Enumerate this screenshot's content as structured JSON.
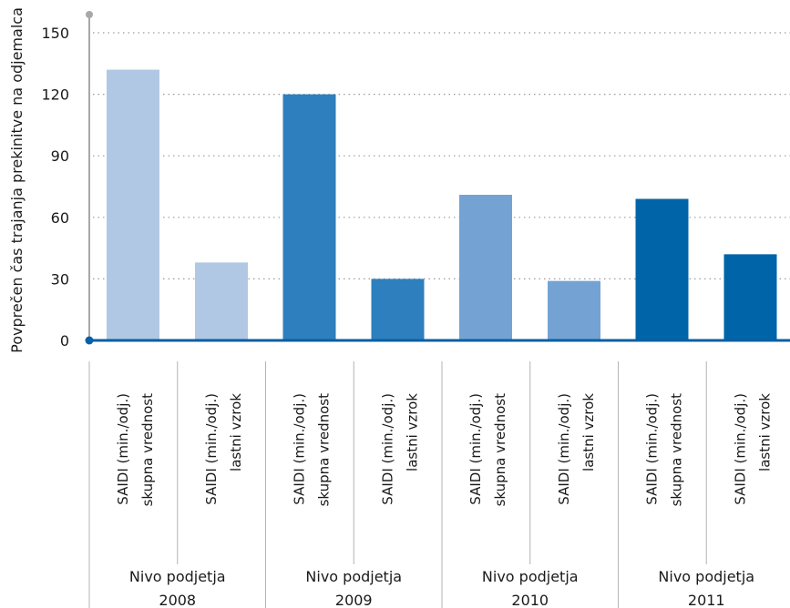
{
  "chart_data": {
    "type": "bar",
    "ylabel": "Povprečen čas trajanja prekinitve na odjemalca",
    "xlabel": "",
    "ylim": [
      0,
      150
    ],
    "yticks": [
      0,
      30,
      60,
      90,
      120,
      150
    ],
    "grid": true,
    "groups": [
      {
        "label_line1": "Nivo podjetja",
        "label_line2": "2008",
        "color": "#b0c8e4",
        "bars": [
          {
            "line1": "SAIDI (min./odj.)",
            "line2": "skupna vrednost",
            "value": 132
          },
          {
            "line1": "SAIDI (min./odj.)",
            "line2": "lastni vzrok",
            "value": 38
          }
        ]
      },
      {
        "label_line1": "Nivo podjetja",
        "label_line2": "2009",
        "color": "#2e7fbd",
        "bars": [
          {
            "line1": "SAIDI (min./odj.)",
            "line2": "skupna vrednost",
            "value": 120
          },
          {
            "line1": "SAIDI (min./odj.)",
            "line2": "lastni vzrok",
            "value": 30
          }
        ]
      },
      {
        "label_line1": "Nivo podjetja",
        "label_line2": "2010",
        "color": "#74a3d3",
        "bars": [
          {
            "line1": "SAIDI (min./odj.)",
            "line2": "skupna vrednost",
            "value": 71
          },
          {
            "line1": "SAIDI (min./odj.)",
            "line2": "lastni vzrok",
            "value": 29
          }
        ]
      },
      {
        "label_line1": "Nivo podjetja",
        "label_line2": "2011",
        "color": "#0064a8",
        "bars": [
          {
            "line1": "SAIDI (min./odj.)",
            "line2": "skupna vrednost",
            "value": 69
          },
          {
            "line1": "SAIDI (min./odj.)",
            "line2": "lastni vzrok",
            "value": 42
          }
        ]
      }
    ],
    "colors": {
      "axis": "#0a5fa3",
      "grid": "#9a9a9a",
      "axis_top_dot": "#a8a8a8",
      "divider": "#b4b4b4"
    }
  }
}
